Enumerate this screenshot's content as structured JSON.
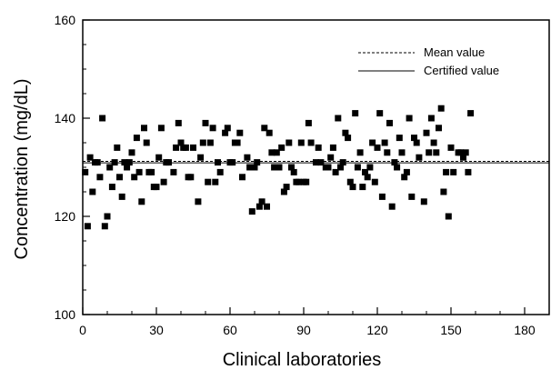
{
  "chart_data": {
    "type": "scatter",
    "title": "",
    "xlabel": "Clinical laboratories",
    "ylabel": "Concentration (mg/dL)",
    "xlim": [
      0,
      190
    ],
    "ylim": [
      100,
      160
    ],
    "xticks": [
      0,
      30,
      60,
      90,
      120,
      150,
      180
    ],
    "yticks": [
      100,
      120,
      140,
      160
    ],
    "x_minor_step": 10,
    "y_minor_step": 5,
    "grid": false,
    "legend": {
      "placement": "top-right"
    },
    "reference_lines": [
      {
        "name": "Mean value",
        "y": 131.2,
        "style": "dashed"
      },
      {
        "name": "Certified value",
        "y": 130.9,
        "style": "solid"
      }
    ],
    "series": [
      {
        "marker": "square",
        "color": "#000000",
        "points": [
          [
            1,
            129
          ],
          [
            2,
            118
          ],
          [
            3,
            132
          ],
          [
            4,
            125
          ],
          [
            5,
            131
          ],
          [
            6,
            131
          ],
          [
            7,
            128
          ],
          [
            8,
            140
          ],
          [
            9,
            118
          ],
          [
            10,
            120
          ],
          [
            11,
            130
          ],
          [
            12,
            126
          ],
          [
            13,
            131
          ],
          [
            14,
            134
          ],
          [
            15,
            128
          ],
          [
            16,
            124
          ],
          [
            17,
            131
          ],
          [
            18,
            130
          ],
          [
            19,
            131
          ],
          [
            20,
            133
          ],
          [
            21,
            128
          ],
          [
            22,
            136
          ],
          [
            23,
            129
          ],
          [
            24,
            123
          ],
          [
            25,
            138
          ],
          [
            26,
            135
          ],
          [
            27,
            129
          ],
          [
            28,
            129
          ],
          [
            29,
            126
          ],
          [
            30,
            126
          ],
          [
            31,
            132
          ],
          [
            32,
            138
          ],
          [
            33,
            127
          ],
          [
            34,
            131
          ],
          [
            35,
            131
          ],
          [
            37,
            129
          ],
          [
            38,
            134
          ],
          [
            39,
            139
          ],
          [
            40,
            135
          ],
          [
            41,
            134
          ],
          [
            42,
            134
          ],
          [
            43,
            128
          ],
          [
            44,
            128
          ],
          [
            45,
            134
          ],
          [
            47,
            123
          ],
          [
            48,
            132
          ],
          [
            49,
            135
          ],
          [
            50,
            139
          ],
          [
            51,
            127
          ],
          [
            52,
            135
          ],
          [
            53,
            138
          ],
          [
            54,
            127
          ],
          [
            55,
            131
          ],
          [
            56,
            129
          ],
          [
            58,
            137
          ],
          [
            59,
            138
          ],
          [
            60,
            131
          ],
          [
            61,
            131
          ],
          [
            62,
            135
          ],
          [
            63,
            135
          ],
          [
            64,
            137
          ],
          [
            65,
            128
          ],
          [
            67,
            132
          ],
          [
            68,
            130
          ],
          [
            69,
            121
          ],
          [
            70,
            130
          ],
          [
            71,
            131
          ],
          [
            72,
            122
          ],
          [
            73,
            123
          ],
          [
            74,
            138
          ],
          [
            75,
            122
          ],
          [
            76,
            137
          ],
          [
            77,
            133
          ],
          [
            78,
            130
          ],
          [
            79,
            133
          ],
          [
            80,
            130
          ],
          [
            81,
            134
          ],
          [
            82,
            125
          ],
          [
            83,
            126
          ],
          [
            84,
            135
          ],
          [
            85,
            130
          ],
          [
            86,
            129
          ],
          [
            87,
            127
          ],
          [
            88,
            127
          ],
          [
            89,
            135
          ],
          [
            90,
            127
          ],
          [
            91,
            127
          ],
          [
            92,
            139
          ],
          [
            93,
            135
          ],
          [
            95,
            131
          ],
          [
            96,
            134
          ],
          [
            97,
            131
          ],
          [
            99,
            130
          ],
          [
            100,
            130
          ],
          [
            101,
            132
          ],
          [
            102,
            134
          ],
          [
            103,
            129
          ],
          [
            104,
            140
          ],
          [
            105,
            130
          ],
          [
            106,
            131
          ],
          [
            107,
            137
          ],
          [
            108,
            136
          ],
          [
            109,
            127
          ],
          [
            110,
            126
          ],
          [
            111,
            141
          ],
          [
            112,
            130
          ],
          [
            113,
            133
          ],
          [
            114,
            126
          ],
          [
            115,
            129
          ],
          [
            116,
            128
          ],
          [
            117,
            130
          ],
          [
            118,
            135
          ],
          [
            119,
            127
          ],
          [
            120,
            134
          ],
          [
            121,
            141
          ],
          [
            122,
            124
          ],
          [
            123,
            135
          ],
          [
            124,
            133
          ],
          [
            125,
            139
          ],
          [
            126,
            122
          ],
          [
            127,
            131
          ],
          [
            128,
            130
          ],
          [
            129,
            136
          ],
          [
            130,
            133
          ],
          [
            131,
            128
          ],
          [
            132,
            129
          ],
          [
            133,
            140
          ],
          [
            134,
            124
          ],
          [
            135,
            136
          ],
          [
            136,
            135
          ],
          [
            137,
            132
          ],
          [
            139,
            123
          ],
          [
            140,
            137
          ],
          [
            141,
            133
          ],
          [
            142,
            140
          ],
          [
            143,
            135
          ],
          [
            144,
            133
          ],
          [
            145,
            138
          ],
          [
            146,
            142
          ],
          [
            147,
            125
          ],
          [
            148,
            129
          ],
          [
            149,
            120
          ],
          [
            150,
            134
          ],
          [
            151,
            129
          ],
          [
            153,
            133
          ],
          [
            154,
            133
          ],
          [
            155,
            132
          ],
          [
            156,
            133
          ],
          [
            157,
            129
          ],
          [
            158,
            141
          ]
        ]
      }
    ]
  }
}
